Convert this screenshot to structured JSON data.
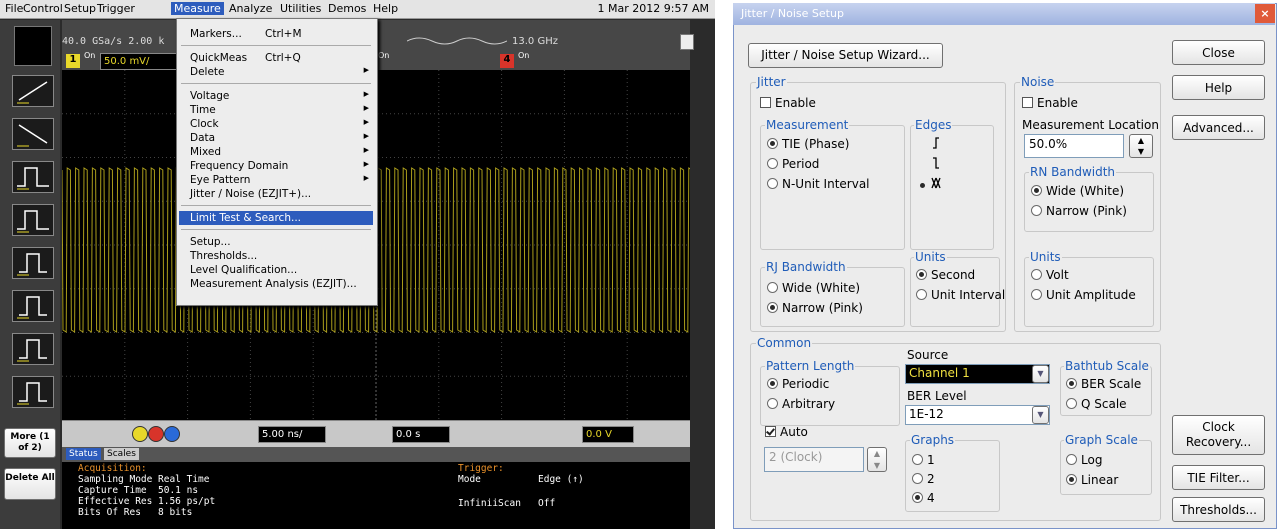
{
  "menu_bar": {
    "items": [
      "File",
      "Control",
      "Setup",
      "Trigger",
      "Measure",
      "Analyze",
      "Utilities",
      "Demos",
      "Help"
    ],
    "active": 4,
    "datetime": "1 Mar 2012 9:57 AM"
  },
  "measure_menu": {
    "highlighted": 11,
    "items": [
      {
        "label": "Markers...",
        "shortcut": "Ctrl+M",
        "separator_after": true
      },
      {
        "label": "QuickMeas",
        "shortcut": "Ctrl+Q"
      },
      {
        "label": "Delete",
        "submenu": true,
        "separator_after": true
      },
      {
        "label": "Voltage",
        "submenu": true
      },
      {
        "label": "Time",
        "submenu": true
      },
      {
        "label": "Clock",
        "submenu": true
      },
      {
        "label": "Data",
        "submenu": true
      },
      {
        "label": "Mixed",
        "submenu": true
      },
      {
        "label": "Frequency Domain",
        "submenu": true
      },
      {
        "label": "Eye Pattern",
        "submenu": true
      },
      {
        "label": "Jitter / Noise (EZJIT+)...",
        "separator_after": true
      },
      {
        "label": "Limit Test & Search...",
        "separator_after": true
      },
      {
        "label": "Setup..."
      },
      {
        "label": "Thresholds..."
      },
      {
        "label": "Level Qualification..."
      },
      {
        "label": "Measurement Analysis (EZJIT)..."
      }
    ]
  },
  "scope": {
    "acq_info": "40.0 GSa/s  2.00 k",
    "bandwidth": "13.0 GHz",
    "channel1": {
      "number": "1",
      "state": "On",
      "scale": "50.0 mV/"
    },
    "channel3": {
      "state": "On"
    },
    "channel4": {
      "number": "4",
      "state": "On"
    },
    "side_buttons": [
      "More (1 of 2)",
      "Delete All"
    ],
    "timebase": "5.00 ns/",
    "delay": "0.0 s",
    "trigger_level": "0.0 V",
    "tabs": [
      "Status",
      "Scales"
    ],
    "status": {
      "acquisition_heading": "Acquisition:",
      "rows": [
        [
          "Sampling Mode",
          "Real Time"
        ],
        [
          "Capture Time",
          "50.1 ns"
        ],
        [
          "Effective Res",
          "1.56 ps/pt"
        ],
        [
          "Bits Of Res",
          "8 bits"
        ]
      ],
      "trigger_heading": "Trigger:",
      "trigger_rows": [
        [
          "Mode",
          "Edge (↑)"
        ],
        [
          "InfiniiScan",
          "Off"
        ]
      ]
    }
  },
  "dialog": {
    "title": "Jitter / Noise Setup",
    "wizard": "Jitter / Noise Setup Wizard...",
    "buttons": [
      "Close",
      "Help",
      "Advanced...",
      "Clock Recovery...",
      "TIE Filter...",
      "Thresholds..."
    ],
    "jitter": {
      "heading": "Jitter",
      "enable": {
        "label": "Enable",
        "checked": false
      },
      "measurement": {
        "heading": "Measurement",
        "options": [
          "TIE (Phase)",
          "Period",
          "N-Unit Interval"
        ],
        "selected": 0
      },
      "edges": {
        "heading": "Edges",
        "selected": 2
      },
      "rj_bandwidth": {
        "heading": "RJ Bandwidth",
        "options": [
          "Wide (White)",
          "Narrow (Pink)"
        ],
        "selected": 1
      },
      "units": {
        "heading": "Units",
        "options": [
          "Second",
          "Unit Interval"
        ],
        "selected": 0
      }
    },
    "noise": {
      "heading": "Noise",
      "enable": {
        "label": "Enable",
        "checked": false
      },
      "location_label": "Measurement Location",
      "location": "50.0%",
      "rn_bandwidth": {
        "heading": "RN Bandwidth",
        "options": [
          "Wide (White)",
          "Narrow (Pink)"
        ],
        "selected": 0
      },
      "units": {
        "heading": "Units",
        "options": [
          "Volt",
          "Unit Amplitude"
        ],
        "selected": -1
      }
    },
    "common": {
      "heading": "Common",
      "pattern_length": {
        "heading": "Pattern Length",
        "options": [
          "Periodic",
          "Arbitrary"
        ],
        "selected": 0
      },
      "auto": {
        "label": "Auto",
        "checked": true
      },
      "pattern_value": "2 (Clock)",
      "source_label": "Source",
      "source": "Channel 1",
      "ber_label": "BER Level",
      "ber": "1E-12",
      "graphs": {
        "heading": "Graphs",
        "options": [
          "1",
          "2",
          "4"
        ],
        "selected": 2
      },
      "bathtub": {
        "heading": "Bathtub Scale",
        "options": [
          "BER Scale",
          "Q Scale"
        ],
        "selected": 0
      },
      "graph_scale": {
        "heading": "Graph Scale",
        "options": [
          "Log",
          "Linear"
        ],
        "selected": 1
      }
    }
  }
}
